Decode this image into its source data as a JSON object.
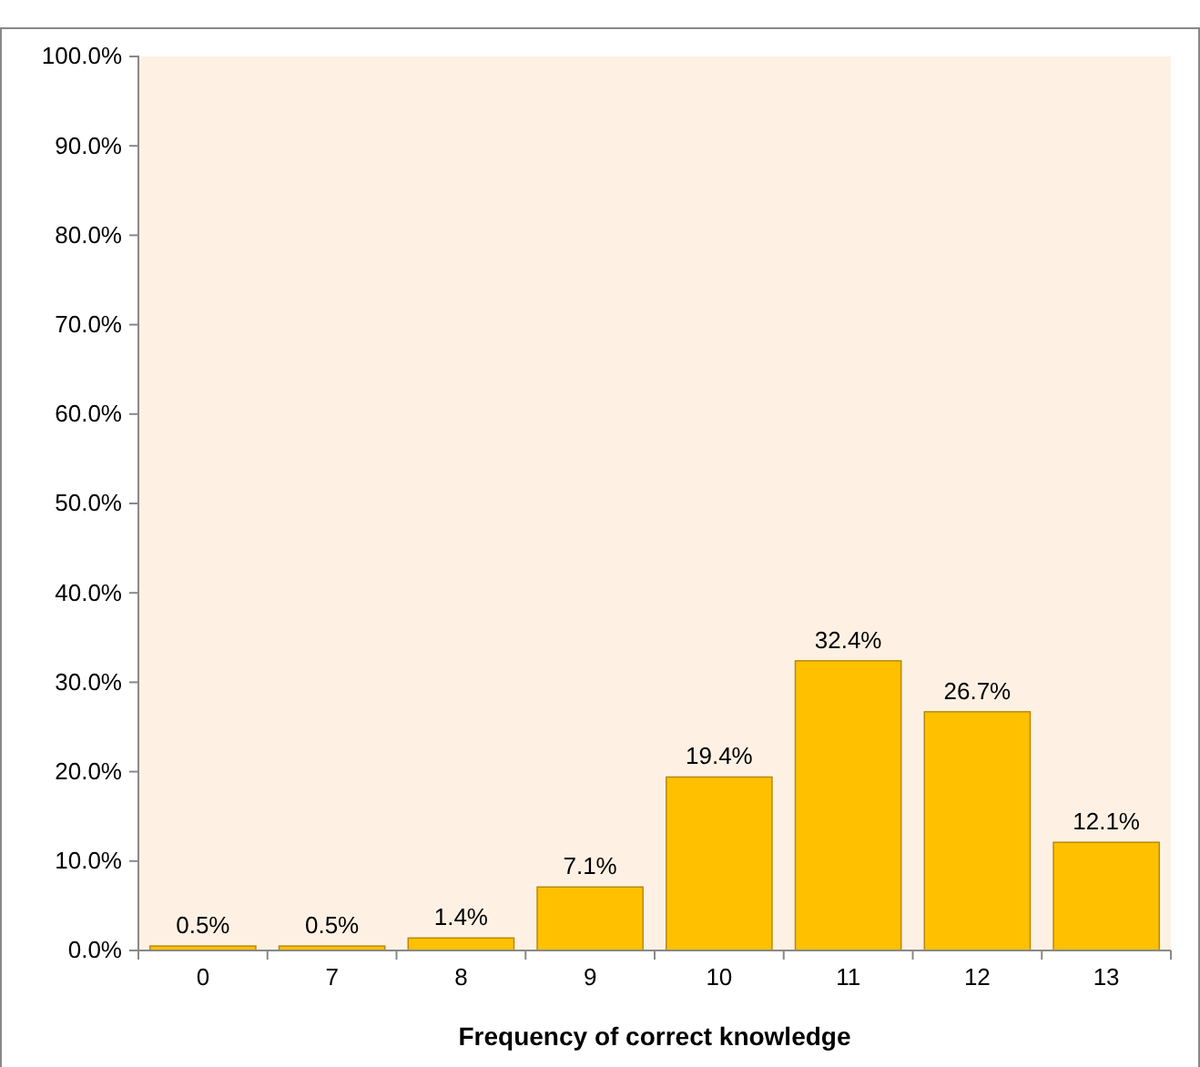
{
  "chart_data": {
    "type": "bar",
    "xlabel": "Frequency of correct knowledge",
    "categories": [
      "0",
      "7",
      "8",
      "9",
      "10",
      "11",
      "12",
      "13"
    ],
    "values": [
      0.5,
      0.5,
      1.4,
      7.1,
      19.4,
      32.4,
      26.7,
      12.1
    ],
    "value_labels": [
      "0.5%",
      "0.5%",
      "1.4%",
      "7.1%",
      "19.4%",
      "32.4%",
      "26.7%",
      "12.1%"
    ],
    "color": "#ffc000",
    "ylim": [
      0,
      100
    ],
    "yticks": [
      {
        "value": 0,
        "label": "0.0%"
      },
      {
        "value": 10,
        "label": "10.0%"
      },
      {
        "value": 20,
        "label": "20.0%"
      },
      {
        "value": 30,
        "label": "30.0%"
      },
      {
        "value": 40,
        "label": "40.0%"
      },
      {
        "value": 50,
        "label": "50.0%"
      },
      {
        "value": 60,
        "label": "60.0%"
      },
      {
        "value": 70,
        "label": "70.0%"
      },
      {
        "value": 80,
        "label": "80.0%"
      },
      {
        "value": 90,
        "label": "90.0%"
      },
      {
        "value": 100,
        "label": "100.0%"
      }
    ]
  }
}
